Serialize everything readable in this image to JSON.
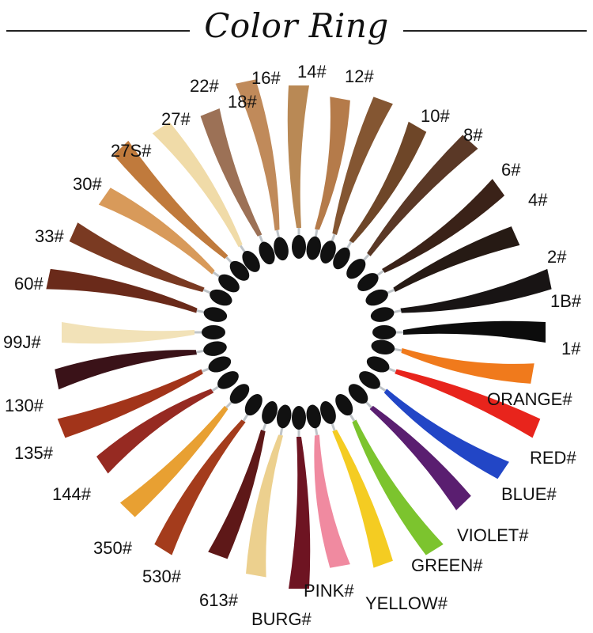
{
  "title": "Color Ring",
  "swatches": [
    {
      "label": "12#",
      "color": "#b57b4a"
    },
    {
      "label": "14#",
      "color": "#b98955"
    },
    {
      "label": "16#",
      "color": "#c08a5a"
    },
    {
      "label": "18#",
      "color": "#9c7156"
    },
    {
      "label": "22#",
      "color": "#f0dba8"
    },
    {
      "label": "27#",
      "color": "#c07a3c"
    },
    {
      "label": "27S#",
      "color": "#d89a5a"
    },
    {
      "label": "30#",
      "color": "#7a3a22"
    },
    {
      "label": "33#",
      "color": "#6a2a1a"
    },
    {
      "label": "60#",
      "color": "#f2e2b8"
    },
    {
      "label": "99J#",
      "color": "#3a1218"
    },
    {
      "label": "130#",
      "color": "#a2341a"
    },
    {
      "label": "135#",
      "color": "#962a22"
    },
    {
      "label": "144#",
      "color": "#e8a032"
    },
    {
      "label": "350#",
      "color": "#a43c1c"
    },
    {
      "label": "530#",
      "color": "#5e1818"
    },
    {
      "label": "613#",
      "color": "#ecd08e"
    },
    {
      "label": "BURG#",
      "color": "#6e1422"
    },
    {
      "label": "PINK#",
      "color": "#f08aa0"
    },
    {
      "label": "YELLOW#",
      "color": "#f4cc22"
    },
    {
      "label": "GREEN#",
      "color": "#7cc42e"
    },
    {
      "label": "VIOLET#",
      "color": "#5a1e70"
    },
    {
      "label": "BLUE#",
      "color": "#2246c6"
    },
    {
      "label": "RED#",
      "color": "#e8241c"
    },
    {
      "label": "ORANGE#",
      "color": "#f07a1c"
    },
    {
      "label": "1#",
      "color": "#0c0c0c"
    },
    {
      "label": "1B#",
      "color": "#181414"
    },
    {
      "label": "2#",
      "color": "#261a14"
    },
    {
      "label": "4#",
      "color": "#3a2218"
    },
    {
      "label": "6#",
      "color": "#5a3826"
    },
    {
      "label": "8#",
      "color": "#6e4628"
    },
    {
      "label": "10#",
      "color": "#845632"
    }
  ]
}
